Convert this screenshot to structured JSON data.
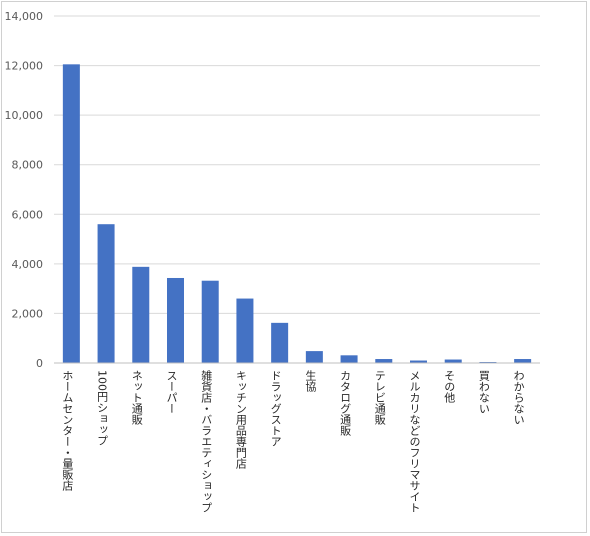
{
  "chart_data": {
    "type": "bar",
    "title": "",
    "xlabel": "",
    "ylabel": "",
    "ylim": [
      0,
      14000
    ],
    "yticks": [
      0,
      2000,
      4000,
      6000,
      8000,
      10000,
      12000,
      14000
    ],
    "ytick_labels": [
      "0",
      "2,000",
      "4,000",
      "6,000",
      "8,000",
      "10,000",
      "12,000",
      "14,000"
    ],
    "grid": true,
    "legend": "none",
    "bar_color": "#4472C4",
    "grid_color": "#d9d9d9",
    "categories": [
      "ホームセンター・量販店",
      "100円ショップ",
      "ネット通販",
      "スーパー",
      "雑貨店・バラエティショップ",
      "キッチン用品専門店",
      "ドラッグストア",
      "生協",
      "カタログ通販",
      "テレビ通販",
      "メルカリなどのフリマサイト",
      "その他",
      "買わない",
      "わからない"
    ],
    "values": [
      12050,
      5600,
      3880,
      3430,
      3320,
      2600,
      1620,
      480,
      310,
      160,
      100,
      140,
      40,
      160
    ]
  }
}
